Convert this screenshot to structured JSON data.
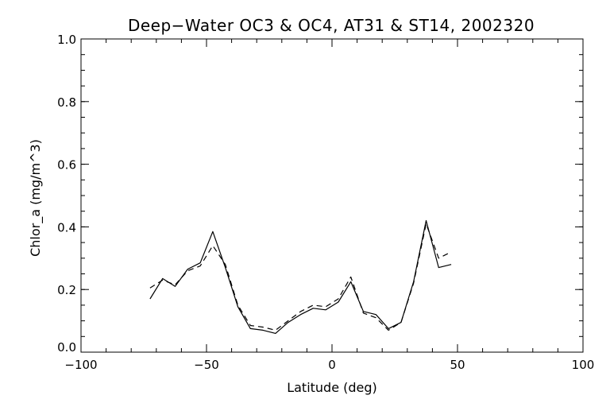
{
  "chart_data": {
    "type": "line",
    "title": "Deep−Water OC3 & OC4, AT31 & ST14, 2002320",
    "xlabel": "Latitude (deg)",
    "ylabel": "Chlor_a (mg/m^3)",
    "xlim": [
      -100,
      100
    ],
    "ylim": [
      0,
      1
    ],
    "xticks": [
      -100,
      -50,
      0,
      50,
      100
    ],
    "xtick_labels": [
      "−100",
      "−50",
      "0",
      "50",
      "100"
    ],
    "yticks": [
      0.0,
      0.2,
      0.4,
      0.6,
      0.8,
      1.0
    ],
    "ytick_labels": [
      "0.0",
      "0.2",
      "0.4",
      "0.6",
      "0.8",
      "1.0"
    ],
    "x_minor_step": 10,
    "y_minor_step": 0.05,
    "grid": false,
    "series": [
      {
        "style": "solid",
        "color": "#000000",
        "x": [
          -72.5,
          -67.5,
          -62.5,
          -57.5,
          -52.5,
          -47.5,
          -42.5,
          -37.5,
          -32.5,
          -27.5,
          -22.5,
          -17.5,
          -12.5,
          -7.5,
          -2.5,
          2.5,
          7.5,
          12.5,
          17.5,
          22.5,
          27.5,
          32.5,
          37.5,
          42.5,
          47.5
        ],
        "y": [
          0.17,
          0.235,
          0.21,
          0.265,
          0.285,
          0.385,
          0.27,
          0.145,
          0.075,
          0.07,
          0.06,
          0.095,
          0.12,
          0.14,
          0.135,
          0.16,
          0.225,
          0.13,
          0.12,
          0.075,
          0.095,
          0.225,
          0.42,
          0.27,
          0.28
        ]
      },
      {
        "style": "dashed",
        "color": "#000000",
        "x": [
          -72.5,
          -67.5,
          -62.5,
          -57.5,
          -52.5,
          -47.5,
          -42.5,
          -37.5,
          -32.5,
          -27.5,
          -22.5,
          -17.5,
          -12.5,
          -7.5,
          -2.5,
          2.5,
          7.5,
          12.5,
          17.5,
          22.5,
          27.5,
          32.5,
          37.5,
          42.5,
          47.5
        ],
        "y": [
          0.205,
          0.23,
          0.215,
          0.26,
          0.275,
          0.34,
          0.28,
          0.15,
          0.085,
          0.08,
          0.07,
          0.1,
          0.13,
          0.15,
          0.145,
          0.17,
          0.24,
          0.125,
          0.11,
          0.07,
          0.095,
          0.22,
          0.41,
          0.3,
          0.32
        ]
      }
    ]
  }
}
